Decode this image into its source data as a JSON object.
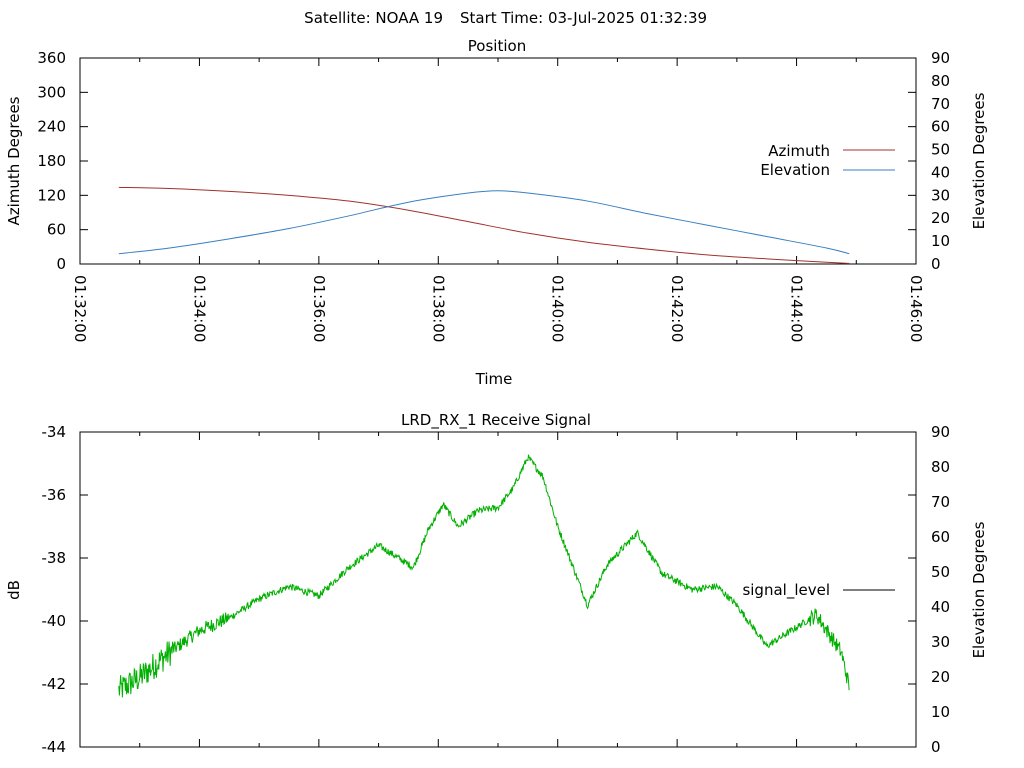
{
  "header": {
    "satellite": "Satellite: NOAA 19",
    "start_time": "Start Time: 03-Jul-2025 01:32:39"
  },
  "chart_data": [
    {
      "type": "line",
      "title": "Position",
      "xlabel": "Time",
      "ylabel": "Azimuth Degrees",
      "y2label": "Elevation Degrees",
      "ylim": [
        0,
        360
      ],
      "y2lim": [
        0,
        90
      ],
      "y_ticks": [
        "0",
        "60",
        "120",
        "180",
        "240",
        "300",
        "360"
      ],
      "y2_ticks": [
        "0",
        "10",
        "20",
        "30",
        "40",
        "50",
        "60",
        "70",
        "80",
        "90"
      ],
      "x_ticks": [
        "01:32:00",
        "01:34:00",
        "01:36:00",
        "01:38:00",
        "01:40:00",
        "01:42:00",
        "01:44:00",
        "01:46:00"
      ],
      "xlim": [
        "01:32:00",
        "01:46:00"
      ],
      "legend_position": "right",
      "series": [
        {
          "name": "Azimuth",
          "axis": "left",
          "color": "#a0322c",
          "x": [
            "01:32:39",
            "01:33:30",
            "01:34:30",
            "01:35:30",
            "01:36:30",
            "01:37:30",
            "01:38:30",
            "01:39:30",
            "01:40:30",
            "01:41:30",
            "01:42:30",
            "01:43:30",
            "01:44:30",
            "01:44:53"
          ],
          "values": [
            134,
            132,
            127,
            120,
            110,
            94,
            74,
            54,
            38,
            26,
            16,
            9,
            3,
            1
          ]
        },
        {
          "name": "Elevation",
          "axis": "right",
          "color": "#3a7fc0",
          "x": [
            "01:32:39",
            "01:33:30",
            "01:34:30",
            "01:35:30",
            "01:36:30",
            "01:37:30",
            "01:38:30",
            "01:39:00",
            "01:39:30",
            "01:40:30",
            "01:41:30",
            "01:42:30",
            "01:43:30",
            "01:44:30",
            "01:44:53"
          ],
          "values": [
            4.5,
            7,
            11,
            15.5,
            21,
            27,
            31,
            32,
            31,
            27.5,
            22,
            17,
            12,
            7,
            4.5
          ]
        }
      ]
    },
    {
      "type": "line",
      "title": "LRD_RX_1 Receive Signal",
      "ylabel": "dB",
      "y2label": "Elevation Degrees",
      "ylim": [
        -44,
        -34
      ],
      "y2lim": [
        0,
        90
      ],
      "y_ticks": [
        "-34",
        "-36",
        "-38",
        "-40",
        "-42",
        "-44"
      ],
      "y2_ticks": [
        "0",
        "10",
        "20",
        "30",
        "40",
        "50",
        "60",
        "70",
        "80",
        "90"
      ],
      "xlim": [
        "01:32:00",
        "01:46:00"
      ],
      "legend_position": "right",
      "legend_entry": "signal_level",
      "series": [
        {
          "name": "signal_level",
          "color": "#00b000",
          "x": [
            "01:32:39",
            "01:33:00",
            "01:33:30",
            "01:34:00",
            "01:34:30",
            "01:35:00",
            "01:35:30",
            "01:36:00",
            "01:36:30",
            "01:37:00",
            "01:37:15",
            "01:37:35",
            "01:37:50",
            "01:38:05",
            "01:38:20",
            "01:38:40",
            "01:39:00",
            "01:39:15",
            "01:39:30",
            "01:39:45",
            "01:40:00",
            "01:40:30",
            "01:40:50",
            "01:41:20",
            "01:41:45",
            "01:42:15",
            "01:42:40",
            "01:43:00",
            "01:43:30",
            "01:43:50",
            "01:44:20",
            "01:44:45",
            "01:44:53"
          ],
          "values": [
            -42.2,
            -41.8,
            -41.0,
            -40.3,
            -39.9,
            -39.3,
            -38.9,
            -39.2,
            -38.3,
            -37.6,
            -37.9,
            -38.3,
            -37.1,
            -36.3,
            -37.0,
            -36.5,
            -36.4,
            -35.8,
            -34.8,
            -35.4,
            -37.0,
            -39.5,
            -38.2,
            -37.2,
            -38.5,
            -39.0,
            -38.9,
            -39.5,
            -40.8,
            -40.4,
            -39.8,
            -41.0,
            -42.1
          ]
        }
      ]
    }
  ]
}
